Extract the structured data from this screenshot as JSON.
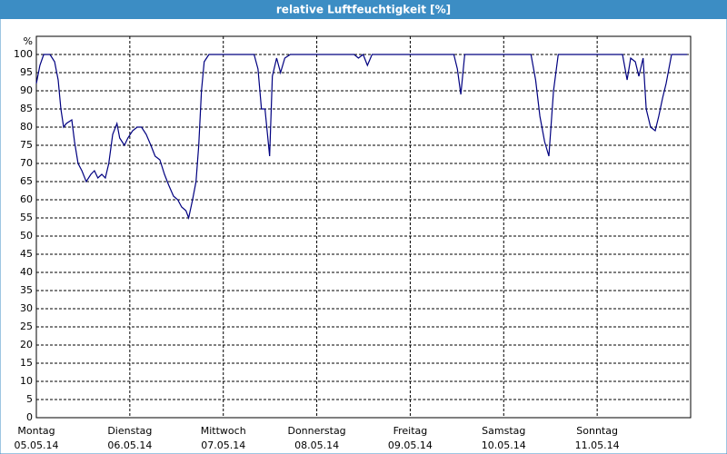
{
  "chart_data": {
    "type": "line",
    "title": "relative Luftfeuchtigkeit [%]",
    "y_label": "%",
    "x": [
      0,
      0.9,
      1.9,
      3.5,
      4.7,
      5.6,
      6.3,
      7.0,
      7.7,
      9.1,
      9.8,
      10.7,
      11.7,
      12.8,
      14.0,
      14.9,
      15.8,
      16.8,
      17.7,
      18.6,
      19.6,
      20.7,
      21.4,
      22.6,
      23.5,
      24.7,
      25.9,
      27.0,
      28.2,
      29.4,
      30.5,
      31.7,
      32.9,
      34.0,
      35.2,
      36.3,
      37.3,
      38.4,
      39.1,
      40.1,
      41.0,
      41.7,
      42.4,
      43.1,
      44.3,
      55.9,
      56.9,
      57.8,
      58.7,
      59.9,
      60.6,
      61.7,
      62.7,
      63.8,
      65.2,
      81.6,
      82.7,
      83.9,
      85.0,
      86.2,
      107.2,
      108.1,
      109.0,
      110.0,
      127.0,
      128.2,
      129.3,
      130.5,
      131.6,
      132.8,
      134.0,
      150.5,
      151.7,
      152.6,
      153.8,
      154.7,
      155.8,
      156.6,
      157.7,
      158.9,
      159.8,
      160.8,
      161.7,
      163.1,
      167.1
    ],
    "values": [
      92,
      97,
      100,
      100,
      98,
      93,
      85,
      80,
      81,
      82,
      76,
      70,
      68,
      65,
      67,
      68,
      66,
      67,
      66,
      70,
      78,
      81,
      77,
      75,
      77,
      79,
      80,
      80,
      78,
      75,
      72,
      71,
      67,
      64,
      61,
      60,
      58,
      57,
      55,
      60,
      65,
      75,
      90,
      98,
      100,
      100,
      96,
      85,
      85,
      72,
      94,
      99,
      95,
      99,
      100,
      100,
      99,
      100,
      97,
      100,
      100,
      96,
      89,
      100,
      100,
      93,
      83,
      76,
      72,
      90,
      100,
      100,
      93,
      99,
      98,
      94,
      99,
      85,
      80,
      79,
      83,
      88,
      92,
      100,
      100
    ],
    "color": "#000080",
    "xlim": [
      0,
      168
    ],
    "xticks": [
      {
        "value": 0,
        "label": "Montag",
        "date": "05.05.14"
      },
      {
        "value": 24,
        "label": "Dienstag",
        "date": "06.05.14"
      },
      {
        "value": 48,
        "label": "Mittwoch",
        "date": "07.05.14"
      },
      {
        "value": 72,
        "label": "Donnerstag",
        "date": "08.05.14"
      },
      {
        "value": 96,
        "label": "Freitag",
        "date": "09.05.14"
      },
      {
        "value": 120,
        "label": "Samstag",
        "date": "10.05.14"
      },
      {
        "value": 144,
        "label": "Sonntag",
        "date": "11.05.14"
      }
    ],
    "ylim": [
      0,
      105
    ],
    "yticks": [
      0,
      5,
      10,
      15,
      20,
      25,
      30,
      35,
      40,
      45,
      50,
      55,
      60,
      65,
      70,
      75,
      80,
      85,
      90,
      95,
      100
    ],
    "grid": true
  }
}
